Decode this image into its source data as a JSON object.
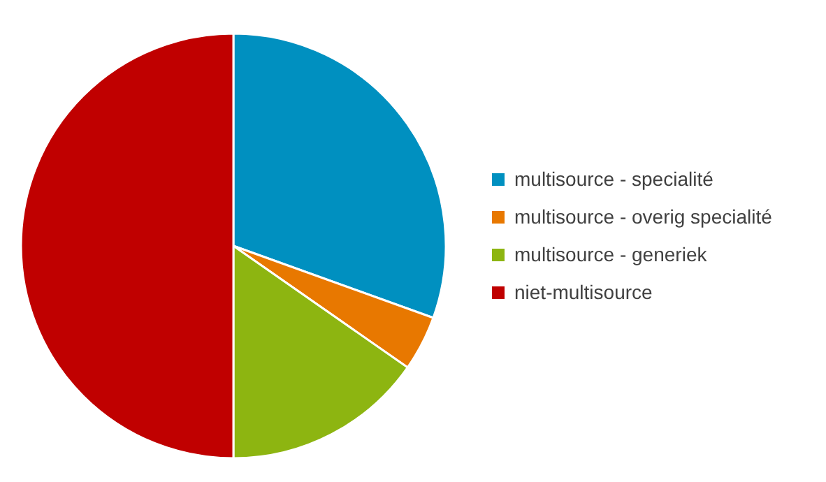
{
  "chart_data": {
    "type": "pie",
    "categories": [
      "multisource - specialité",
      "multisource - overig specialité",
      "multisource - generiek",
      "niet-multisource"
    ],
    "values": [
      30.5,
      4.2,
      15.3,
      50.0
    ],
    "colors": [
      "#0090c0",
      "#e87800",
      "#8db511",
      "#c00000"
    ],
    "legend": "right"
  }
}
